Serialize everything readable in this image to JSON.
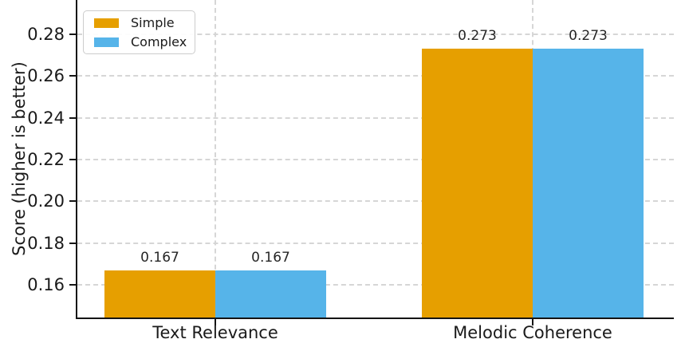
{
  "figure": {
    "kind": "grouped-bar-chart",
    "background": "#ffffff"
  },
  "chart_data": {
    "type": "bar",
    "title": "",
    "categories": [
      "Text Relevance",
      "Melodic Coherence"
    ],
    "series": [
      {
        "name": "Simple",
        "color": "#E69F00",
        "values": [
          0.167,
          0.273
        ],
        "labels": [
          "0.167",
          "0.273"
        ]
      },
      {
        "name": "Complex",
        "color": "#56B4E9",
        "values": [
          0.167,
          0.273
        ],
        "labels": [
          "0.167",
          "0.273"
        ]
      }
    ],
    "xlabel": "",
    "ylabel": "Score (higher is better)",
    "yticks": [
      0.16,
      0.18,
      0.2,
      0.22,
      0.24,
      0.26,
      0.28
    ],
    "ytick_labels": [
      "0.16",
      "0.18",
      "0.20",
      "0.22",
      "0.24",
      "0.26",
      "0.28"
    ],
    "ylim": [
      0.1443,
      0.2965
    ],
    "grid": true,
    "grid_style": "dashed",
    "legend_position": "upper left",
    "colors": {
      "grid": "#d6d6d6",
      "spine": "#141414",
      "text": "#1a1a1a",
      "value_label": "#262626",
      "legend_border": "#cccccc"
    }
  }
}
